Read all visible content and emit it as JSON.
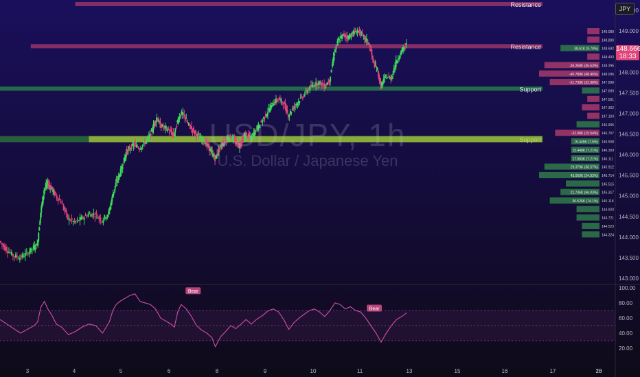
{
  "chart_data": {
    "type": "candlestick",
    "symbol": "USD/JPY",
    "timeframe": "1h",
    "watermark_title": "USD/JPY, 1h",
    "watermark_subtitle": "U.S. Dollar / Japanese Yen",
    "currency": "JPY",
    "last_price": "148.666",
    "countdown": "18:33",
    "y_range": [
      142.9,
      149.75
    ],
    "y_ticks": [
      "149.500",
      "149.000",
      "148.500",
      "148.000",
      "147.500",
      "147.000",
      "146.500",
      "146.000",
      "145.500",
      "145.000",
      "144.500",
      "144.000",
      "143.500",
      "143.000"
    ],
    "x_ticks": [
      "3",
      "4",
      "5",
      "6",
      "8",
      "9",
      "10",
      "11",
      "13",
      "15",
      "16",
      "17",
      "18",
      "20"
    ],
    "x_range_days": [
      2.5,
      20.5
    ],
    "zones": [
      {
        "label": "Resistance",
        "low": 149.62,
        "high": 149.7,
        "x_start_day": 4.7,
        "color": "#a83a6b"
      },
      {
        "label": "Resistance",
        "low": 148.58,
        "high": 148.68,
        "x_start_day": 3.4,
        "color": "#a83a6b"
      },
      {
        "label": "Support",
        "low": 147.55,
        "high": 147.65,
        "x_start_day": 2.5,
        "color": "#2a8a4a"
      },
      {
        "label": "Support",
        "low": 146.3,
        "high": 146.45,
        "x_start_day": 2.5,
        "color": "#2f7a3a"
      },
      {
        "label": "",
        "low": 146.3,
        "high": 146.45,
        "x_start_day": 5.1,
        "color": "#a8c43a"
      }
    ],
    "price_path": [
      [
        2.5,
        143.9
      ],
      [
        2.7,
        143.7
      ],
      [
        2.9,
        143.55
      ],
      [
        3.1,
        143.5
      ],
      [
        3.3,
        143.6
      ],
      [
        3.5,
        143.75
      ],
      [
        3.6,
        143.8
      ],
      [
        3.7,
        144.6
      ],
      [
        3.8,
        145.15
      ],
      [
        3.9,
        145.3
      ],
      [
        4.0,
        145.2
      ],
      [
        4.1,
        145.05
      ],
      [
        4.3,
        144.85
      ],
      [
        4.5,
        144.45
      ],
      [
        4.7,
        144.35
      ],
      [
        4.9,
        144.45
      ],
      [
        5.1,
        144.55
      ],
      [
        5.3,
        144.55
      ],
      [
        5.5,
        144.4
      ],
      [
        5.7,
        144.6
      ],
      [
        5.8,
        145.0
      ],
      [
        5.9,
        145.3
      ],
      [
        6.0,
        145.5
      ],
      [
        6.1,
        145.75
      ],
      [
        6.2,
        146.05
      ],
      [
        6.3,
        146.15
      ],
      [
        6.45,
        146.25
      ],
      [
        6.6,
        146.15
      ],
      [
        6.75,
        146.3
      ],
      [
        6.9,
        146.45
      ],
      [
        7.0,
        146.7
      ],
      [
        7.1,
        146.9
      ],
      [
        7.2,
        146.7
      ],
      [
        7.35,
        146.65
      ],
      [
        7.5,
        146.55
      ],
      [
        7.6,
        146.45
      ],
      [
        7.7,
        146.8
      ],
      [
        7.8,
        147.0
      ],
      [
        7.9,
        146.95
      ],
      [
        8.0,
        146.75
      ],
      [
        8.15,
        146.6
      ],
      [
        8.3,
        146.45
      ],
      [
        8.45,
        146.35
      ],
      [
        8.6,
        146.2
      ],
      [
        8.7,
        146.05
      ],
      [
        8.8,
        145.9
      ],
      [
        8.9,
        146.1
      ],
      [
        9.0,
        146.25
      ],
      [
        9.1,
        146.35
      ],
      [
        9.25,
        146.45
      ],
      [
        9.4,
        146.3
      ],
      [
        9.5,
        146.2
      ],
      [
        9.6,
        146.35
      ],
      [
        9.7,
        146.5
      ],
      [
        9.85,
        146.4
      ],
      [
        10.0,
        146.6
      ],
      [
        10.2,
        146.85
      ],
      [
        10.35,
        147.05
      ],
      [
        10.5,
        147.25
      ],
      [
        10.65,
        147.35
      ],
      [
        10.8,
        147.25
      ],
      [
        10.95,
        146.95
      ],
      [
        11.1,
        147.15
      ],
      [
        11.25,
        147.3
      ],
      [
        11.4,
        147.45
      ],
      [
        11.55,
        147.6
      ],
      [
        11.7,
        147.7
      ],
      [
        11.85,
        147.75
      ],
      [
        12.0,
        147.65
      ],
      [
        12.15,
        147.8
      ],
      [
        12.3,
        148.5
      ],
      [
        12.4,
        148.75
      ],
      [
        12.55,
        148.9
      ],
      [
        12.7,
        148.85
      ],
      [
        12.85,
        148.95
      ],
      [
        13.0,
        149.0
      ],
      [
        13.15,
        148.85
      ],
      [
        13.3,
        148.7
      ],
      [
        13.45,
        148.2
      ],
      [
        13.55,
        148.05
      ],
      [
        13.65,
        147.65
      ],
      [
        13.8,
        147.9
      ],
      [
        13.95,
        147.85
      ],
      [
        14.1,
        148.25
      ],
      [
        14.25,
        148.5
      ],
      [
        14.4,
        148.666
      ]
    ],
    "rsi": {
      "y_range": [
        0,
        100
      ],
      "y_ticks": [
        "100.00",
        "80.00",
        "60.00",
        "40.00",
        "20.00"
      ],
      "bands": [
        70,
        50,
        30
      ],
      "values": [
        [
          2.5,
          58
        ],
        [
          2.7,
          52
        ],
        [
          2.9,
          46
        ],
        [
          3.1,
          40
        ],
        [
          3.3,
          45
        ],
        [
          3.5,
          50
        ],
        [
          3.6,
          55
        ],
        [
          3.7,
          75
        ],
        [
          3.8,
          82
        ],
        [
          3.9,
          72
        ],
        [
          4.0,
          65
        ],
        [
          4.15,
          52
        ],
        [
          4.3,
          48
        ],
        [
          4.5,
          38
        ],
        [
          4.7,
          42
        ],
        [
          4.9,
          48
        ],
        [
          5.1,
          52
        ],
        [
          5.3,
          50
        ],
        [
          5.5,
          40
        ],
        [
          5.7,
          55
        ],
        [
          5.8,
          70
        ],
        [
          5.9,
          78
        ],
        [
          6.0,
          82
        ],
        [
          6.15,
          86
        ],
        [
          6.3,
          90
        ],
        [
          6.45,
          92
        ],
        [
          6.6,
          82
        ],
        [
          6.75,
          80
        ],
        [
          6.9,
          78
        ],
        [
          7.05,
          72
        ],
        [
          7.2,
          60
        ],
        [
          7.35,
          56
        ],
        [
          7.5,
          52
        ],
        [
          7.6,
          48
        ],
        [
          7.7,
          68
        ],
        [
          7.8,
          78
        ],
        [
          7.95,
          72
        ],
        [
          8.1,
          62
        ],
        [
          8.25,
          50
        ],
        [
          8.4,
          44
        ],
        [
          8.55,
          40
        ],
        [
          8.7,
          34
        ],
        [
          8.8,
          22
        ],
        [
          8.95,
          35
        ],
        [
          9.1,
          42
        ],
        [
          9.25,
          50
        ],
        [
          9.4,
          46
        ],
        [
          9.55,
          52
        ],
        [
          9.7,
          58
        ],
        [
          9.85,
          52
        ],
        [
          10.0,
          58
        ],
        [
          10.2,
          64
        ],
        [
          10.35,
          70
        ],
        [
          10.5,
          72
        ],
        [
          10.65,
          68
        ],
        [
          10.8,
          58
        ],
        [
          10.95,
          45
        ],
        [
          11.1,
          54
        ],
        [
          11.25,
          60
        ],
        [
          11.4,
          65
        ],
        [
          11.55,
          70
        ],
        [
          11.7,
          72
        ],
        [
          11.85,
          68
        ],
        [
          12.0,
          62
        ],
        [
          12.15,
          70
        ],
        [
          12.3,
          80
        ],
        [
          12.45,
          78
        ],
        [
          12.6,
          72
        ],
        [
          12.75,
          75
        ],
        [
          12.9,
          70
        ],
        [
          13.05,
          68
        ],
        [
          13.2,
          60
        ],
        [
          13.35,
          50
        ],
        [
          13.5,
          40
        ],
        [
          13.65,
          28
        ],
        [
          13.8,
          40
        ],
        [
          13.95,
          50
        ],
        [
          14.1,
          58
        ],
        [
          14.25,
          62
        ],
        [
          14.4,
          67
        ]
      ],
      "divergence_labels": [
        {
          "label": "Bear",
          "day": 8.15,
          "value": 88
        },
        {
          "label": "Bear",
          "day": 13.45,
          "value": 65
        }
      ]
    },
    "volume_profile": {
      "row_values": [
        "149.089",
        "148.890",
        "148.692",
        "148.493",
        "148.295",
        "148.096",
        "147.898",
        "147.699",
        "147.501",
        "147.302",
        "147.104",
        "146.905",
        "146.707",
        "146.508",
        "146.309",
        "146.111",
        "145.912",
        "145.714",
        "145.515",
        "145.317",
        "145.118",
        "144.920",
        "144.721",
        "144.523",
        "144.324"
      ],
      "labels": [
        "",
        "",
        "38.61K (9.70%)",
        "",
        "-36.268K (45.53%)",
        "-40.788K (48.46%)",
        "-31.738K (32.98%)",
        "",
        "",
        "",
        "",
        "",
        "-32.98K (15.54%)",
        "16.445K (7.6%)",
        "15.448K (7.21%)",
        "17.583K (7.21%)",
        "29.379K (38.57%)",
        "43.069K (24.93%)",
        "",
        "21.736K (66.03%)",
        "30.526K (74.1%)",
        "",
        "",
        "",
        ""
      ],
      "widths": [
        0.1,
        0.1,
        0.6,
        0.1,
        0.9,
        1.0,
        0.8,
        0.2,
        0.1,
        0.2,
        0.1,
        0.3,
        0.7,
        0.4,
        0.4,
        0.4,
        0.9,
        1.0,
        0.5,
        0.6,
        0.8,
        0.3,
        0.3,
        0.2,
        0.2
      ],
      "colors": [
        "bear",
        "bear",
        "bull",
        "bear",
        "bear",
        "bear",
        "bear",
        "bull",
        "bear",
        "bear",
        "bear",
        "bull",
        "bear",
        "bull",
        "bull",
        "bull",
        "bull",
        "bull",
        "bull",
        "bull",
        "bull",
        "bull",
        "bull",
        "bull",
        "bull"
      ]
    }
  }
}
